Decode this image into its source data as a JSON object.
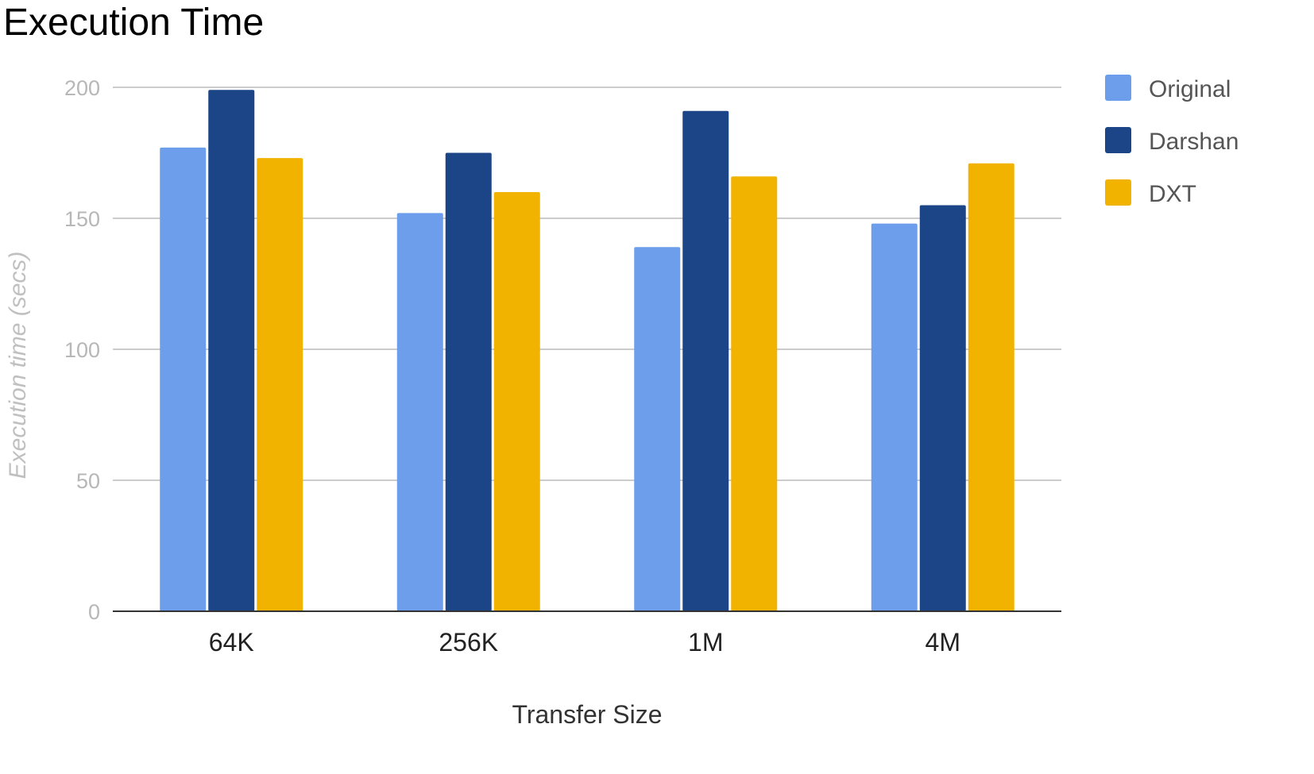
{
  "chart_data": {
    "type": "bar",
    "title": "Execution Time",
    "xlabel": "Transfer Size",
    "ylabel": "Execution time (secs)",
    "categories": [
      "64K",
      "256K",
      "1M",
      "4M"
    ],
    "ylim": [
      0,
      200
    ],
    "yticks": [
      "0",
      "50",
      "100",
      "150",
      "200"
    ],
    "grid": true,
    "legend_position": "right",
    "series": [
      {
        "name": "Original",
        "color": "#6d9eeb",
        "values": [
          177,
          152,
          139,
          148
        ]
      },
      {
        "name": "Darshan",
        "color": "#1c4587",
        "values": [
          199,
          175,
          191,
          155
        ]
      },
      {
        "name": "DXT",
        "color": "#f1b300",
        "values": [
          173,
          160,
          166,
          171
        ]
      }
    ]
  }
}
